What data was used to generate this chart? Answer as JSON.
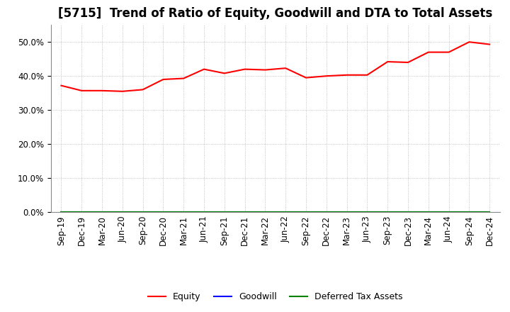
{
  "title": "[5715]  Trend of Ratio of Equity, Goodwill and DTA to Total Assets",
  "x_labels": [
    "Sep-19",
    "Dec-19",
    "Mar-20",
    "Jun-20",
    "Sep-20",
    "Dec-20",
    "Mar-21",
    "Jun-21",
    "Sep-21",
    "Dec-21",
    "Mar-22",
    "Jun-22",
    "Sep-22",
    "Dec-22",
    "Mar-23",
    "Jun-23",
    "Sep-23",
    "Dec-23",
    "Mar-24",
    "Jun-24",
    "Sep-24",
    "Dec-24"
  ],
  "equity": [
    0.372,
    0.357,
    0.357,
    0.355,
    0.36,
    0.39,
    0.393,
    0.42,
    0.408,
    0.42,
    0.418,
    0.423,
    0.395,
    0.4,
    0.403,
    0.403,
    0.442,
    0.44,
    0.47,
    0.47,
    0.5,
    0.493
  ],
  "goodwill": [
    0.0,
    0.0,
    0.0,
    0.0,
    0.0,
    0.0,
    0.0,
    0.0,
    0.0,
    0.0,
    0.0,
    0.0,
    0.0,
    0.0,
    0.0,
    0.0,
    0.0,
    0.0,
    0.0,
    0.0,
    0.0,
    0.0
  ],
  "dta": [
    0.0,
    0.0,
    0.0,
    0.0,
    0.0,
    0.0,
    0.0,
    0.0,
    0.0,
    0.0,
    0.0,
    0.0,
    0.0,
    0.0,
    0.0,
    0.0,
    0.0,
    0.0,
    0.0,
    0.0,
    0.0,
    0.0
  ],
  "equity_color": "#ff0000",
  "goodwill_color": "#0000ff",
  "dta_color": "#008000",
  "ylim": [
    0.0,
    0.55
  ],
  "yticks": [
    0.0,
    0.1,
    0.2,
    0.3,
    0.4,
    0.5
  ],
  "background_color": "#ffffff",
  "plot_bg_color": "#ffffff",
  "grid_color": "#aaaaaa",
  "title_fontsize": 12,
  "tick_fontsize": 8.5,
  "legend_labels": [
    "Equity",
    "Goodwill",
    "Deferred Tax Assets"
  ]
}
